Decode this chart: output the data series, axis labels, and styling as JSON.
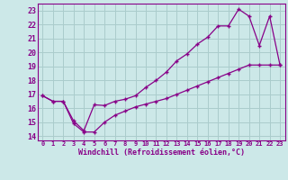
{
  "xlabel": "Windchill (Refroidissement éolien,°C)",
  "bg_color": "#cce8e8",
  "grid_color": "#aacccc",
  "line_color": "#880088",
  "xlim": [
    -0.5,
    23.5
  ],
  "ylim": [
    13.7,
    23.5
  ],
  "yticks": [
    14,
    15,
    16,
    17,
    18,
    19,
    20,
    21,
    22,
    23
  ],
  "xticks": [
    0,
    1,
    2,
    3,
    4,
    5,
    6,
    7,
    8,
    9,
    10,
    11,
    12,
    13,
    14,
    15,
    16,
    17,
    18,
    19,
    20,
    21,
    22,
    23
  ],
  "line1_x": [
    0,
    1,
    2,
    3,
    4,
    5,
    6,
    7,
    8,
    9,
    10,
    11,
    12,
    13,
    14,
    15,
    16,
    17,
    18,
    19,
    20,
    21,
    22,
    23
  ],
  "line1_y": [
    16.9,
    16.5,
    16.5,
    15.1,
    14.4,
    16.25,
    16.2,
    16.5,
    16.65,
    16.9,
    17.5,
    18.0,
    18.6,
    19.4,
    19.9,
    20.6,
    21.1,
    21.9,
    21.9,
    23.1,
    22.6,
    20.5,
    22.6,
    19.1
  ],
  "line2_x": [
    0,
    1,
    2,
    3,
    4,
    5,
    6,
    7,
    8,
    9,
    10,
    11,
    12,
    13,
    14,
    15,
    16,
    17,
    18,
    19,
    20,
    21,
    22,
    23
  ],
  "line2_y": [
    16.9,
    16.5,
    16.5,
    14.9,
    14.3,
    14.3,
    15.0,
    15.5,
    15.8,
    16.1,
    16.3,
    16.5,
    16.7,
    17.0,
    17.3,
    17.6,
    17.9,
    18.2,
    18.5,
    18.8,
    19.1,
    19.1,
    19.1,
    19.1
  ]
}
